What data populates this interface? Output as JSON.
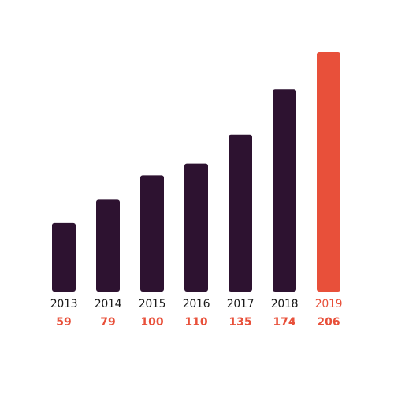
{
  "chart_data": {
    "type": "bar",
    "categories": [
      "2013",
      "2014",
      "2015",
      "2016",
      "2017",
      "2018",
      "2019"
    ],
    "values": [
      59,
      79,
      100,
      110,
      135,
      174,
      206
    ],
    "highlight_index": 6,
    "title": "",
    "xlabel": "",
    "ylabel": "",
    "ylim": [
      0,
      206
    ],
    "grid": false,
    "legend": "none",
    "colors": {
      "bar": "#2d1230",
      "highlight": "#e8503a",
      "year_text": "#1a1a1a",
      "value_text": "#e8503a",
      "background": "#ffffff"
    }
  }
}
